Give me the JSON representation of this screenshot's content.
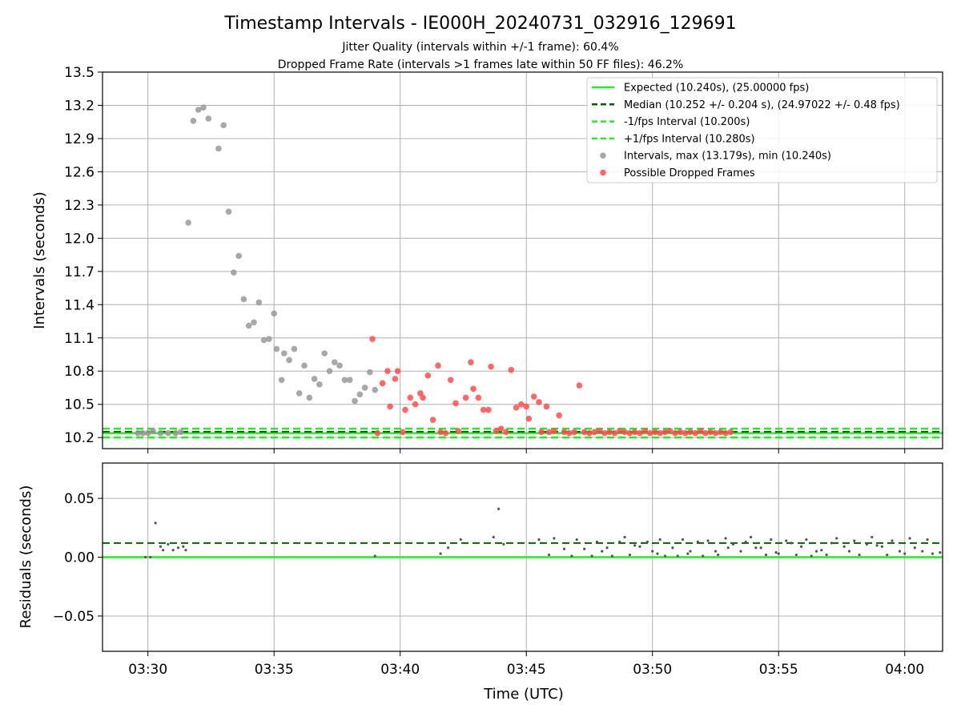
{
  "chart_data": [
    {
      "type": "scatter",
      "title": "Timestamp Intervals - IE000H_20240731_032916_129691",
      "subtitle_lines": [
        "Jitter Quality (intervals within +/-1 frame): 60.4%",
        "Dropped Frame Rate (intervals >1 frames late within 50 FF files): 46.2%"
      ],
      "ylabel": "Intervals (seconds)",
      "ylim": [
        10.1,
        13.5
      ],
      "yticks": [
        "10.2",
        "10.5",
        "10.8",
        "11.1",
        "11.4",
        "11.7",
        "12.0",
        "12.3",
        "12.6",
        "12.9",
        "13.2",
        "13.5"
      ],
      "grid": true,
      "legend_position": "top-right",
      "legend": [
        {
          "label": "Expected (10.240s), (25.00000 fps)",
          "style": "solid",
          "color": "#22ee22"
        },
        {
          "label": "Median (10.252 +/- 0.204 s), (24.97022 +/- 0.48 fps)",
          "style": "dashed",
          "color": "#006400"
        },
        {
          "label": "-1/fps Interval (10.200s)",
          "style": "dashed",
          "color": "#22ee22"
        },
        {
          "label": "+1/fps Interval (10.280s)",
          "style": "dashed",
          "color": "#22ee22"
        },
        {
          "label": "Intervals, max (13.179s), min (10.240s)",
          "style": "marker",
          "color": "#999999"
        },
        {
          "label": "Possible Dropped Frames",
          "style": "marker",
          "color": "#ff4d4d"
        }
      ],
      "hlines": {
        "expected": 10.24,
        "median": 10.252,
        "minus": 10.2,
        "plus": 10.28
      },
      "series": [
        {
          "name": "Intervals, max (13.179s), min (10.240s)",
          "color": "#999999",
          "points": [
            [
              29.6,
              10.24
            ],
            [
              29.8,
              10.24
            ],
            [
              30.0,
              10.24
            ],
            [
              30.2,
              10.26
            ],
            [
              30.5,
              10.24
            ],
            [
              30.8,
              10.24
            ],
            [
              31.1,
              10.24
            ],
            [
              31.3,
              10.25
            ],
            [
              31.6,
              12.14
            ],
            [
              31.8,
              13.06
            ],
            [
              32.0,
              13.16
            ],
            [
              32.2,
              13.18
            ],
            [
              32.4,
              13.08
            ],
            [
              32.8,
              12.81
            ],
            [
              33.0,
              13.02
            ],
            [
              33.2,
              12.24
            ],
            [
              33.4,
              11.69
            ],
            [
              33.6,
              11.84
            ],
            [
              33.8,
              11.45
            ],
            [
              34.0,
              11.21
            ],
            [
              34.2,
              11.24
            ],
            [
              34.4,
              11.42
            ],
            [
              34.6,
              11.08
            ],
            [
              34.8,
              11.09
            ],
            [
              35.0,
              11.32
            ],
            [
              35.1,
              11.0
            ],
            [
              35.3,
              10.72
            ],
            [
              35.4,
              10.96
            ],
            [
              35.6,
              10.9
            ],
            [
              35.8,
              11.0
            ],
            [
              36.0,
              10.6
            ],
            [
              36.2,
              10.85
            ],
            [
              36.4,
              10.56
            ],
            [
              36.6,
              10.73
            ],
            [
              36.8,
              10.68
            ],
            [
              37.0,
              10.96
            ],
            [
              37.2,
              10.8
            ],
            [
              37.4,
              10.88
            ],
            [
              37.6,
              10.85
            ],
            [
              37.8,
              10.72
            ],
            [
              38.0,
              10.72
            ],
            [
              38.2,
              10.53
            ],
            [
              38.4,
              10.59
            ],
            [
              38.6,
              10.65
            ],
            [
              38.8,
              10.79
            ],
            [
              39.0,
              10.63
            ]
          ]
        },
        {
          "name": "Possible Dropped Frames",
          "color": "#ff4d4d",
          "points": [
            [
              38.9,
              11.09
            ],
            [
              39.1,
              10.24
            ],
            [
              39.3,
              10.69
            ],
            [
              39.5,
              10.8
            ],
            [
              39.6,
              10.48
            ],
            [
              39.8,
              10.73
            ],
            [
              39.9,
              10.8
            ],
            [
              40.1,
              10.25
            ],
            [
              40.2,
              10.45
            ],
            [
              40.4,
              10.56
            ],
            [
              40.6,
              10.5
            ],
            [
              40.8,
              10.6
            ],
            [
              40.9,
              10.56
            ],
            [
              41.1,
              10.76
            ],
            [
              41.3,
              10.36
            ],
            [
              41.5,
              10.85
            ],
            [
              41.6,
              10.25
            ],
            [
              41.8,
              10.24
            ],
            [
              42.0,
              10.72
            ],
            [
              42.2,
              10.51
            ],
            [
              42.3,
              10.26
            ],
            [
              42.6,
              10.56
            ],
            [
              42.8,
              10.88
            ],
            [
              42.9,
              10.64
            ],
            [
              43.1,
              10.56
            ],
            [
              43.3,
              10.45
            ],
            [
              43.5,
              10.45
            ],
            [
              43.6,
              10.84
            ],
            [
              43.8,
              10.26
            ],
            [
              44.0,
              10.28
            ],
            [
              44.2,
              10.25
            ],
            [
              44.4,
              10.81
            ],
            [
              44.6,
              10.47
            ],
            [
              44.8,
              10.5
            ],
            [
              45.0,
              10.48
            ],
            [
              45.1,
              10.37
            ],
            [
              45.3,
              10.57
            ],
            [
              45.5,
              10.52
            ],
            [
              45.6,
              10.25
            ],
            [
              45.8,
              10.48
            ],
            [
              45.9,
              10.25
            ],
            [
              46.1,
              10.26
            ],
            [
              46.3,
              10.4
            ],
            [
              46.5,
              10.25
            ],
            [
              46.7,
              10.24
            ],
            [
              46.9,
              10.25
            ],
            [
              47.1,
              10.67
            ],
            [
              47.3,
              10.25
            ],
            [
              47.5,
              10.24
            ],
            [
              47.7,
              10.25
            ],
            [
              47.9,
              10.26
            ],
            [
              48.1,
              10.24
            ],
            [
              48.3,
              10.25
            ],
            [
              48.5,
              10.24
            ],
            [
              48.7,
              10.26
            ],
            [
              48.9,
              10.25
            ],
            [
              49.1,
              10.24
            ],
            [
              49.3,
              10.25
            ],
            [
              49.5,
              10.24
            ],
            [
              49.7,
              10.26
            ],
            [
              49.9,
              10.24
            ],
            [
              50.1,
              10.25
            ],
            [
              50.3,
              10.24
            ],
            [
              50.5,
              10.25
            ],
            [
              50.7,
              10.26
            ],
            [
              50.9,
              10.24
            ],
            [
              51.1,
              10.25
            ],
            [
              51.3,
              10.24
            ],
            [
              51.5,
              10.25
            ],
            [
              51.7,
              10.24
            ],
            [
              51.9,
              10.26
            ],
            [
              52.1,
              10.24
            ],
            [
              52.3,
              10.25
            ],
            [
              52.5,
              10.24
            ],
            [
              52.7,
              10.25
            ],
            [
              52.9,
              10.24
            ],
            [
              53.1,
              10.25
            ]
          ]
        }
      ]
    },
    {
      "type": "scatter",
      "ylabel": "Residuals (seconds)",
      "xlabel": "Time (UTC)",
      "ylim": [
        -0.08,
        0.08
      ],
      "yticks": [
        "0.05",
        "0.00",
        "−0.05"
      ],
      "xlim_minutes": [
        28.2,
        61.5
      ],
      "xticks": [
        "03:30",
        "03:35",
        "03:40",
        "03:45",
        "03:50",
        "03:55",
        "04:00"
      ],
      "grid": true,
      "hlines": {
        "zero": 0.0,
        "median": 0.012
      },
      "points": [
        [
          29.9,
          0.0
        ],
        [
          30.1,
          0.0
        ],
        [
          30.3,
          0.029
        ],
        [
          30.5,
          0.009
        ],
        [
          30.6,
          0.006
        ],
        [
          30.8,
          0.011
        ],
        [
          31.0,
          0.006
        ],
        [
          31.2,
          0.008
        ],
        [
          31.4,
          0.009
        ],
        [
          31.5,
          0.006
        ],
        [
          39.0,
          0.001
        ],
        [
          41.6,
          0.003
        ],
        [
          41.9,
          0.008
        ],
        [
          42.4,
          0.015
        ],
        [
          43.7,
          0.017
        ],
        [
          43.9,
          0.041
        ],
        [
          44.1,
          0.011
        ],
        [
          45.5,
          0.015
        ],
        [
          45.9,
          0.002
        ],
        [
          46.1,
          0.016
        ],
        [
          46.5,
          0.007
        ],
        [
          46.8,
          0.001
        ],
        [
          47.0,
          0.015
        ],
        [
          47.3,
          0.007
        ],
        [
          47.6,
          0.001
        ],
        [
          47.8,
          0.013
        ],
        [
          48.0,
          0.005
        ],
        [
          48.2,
          0.008
        ],
        [
          48.4,
          0.001
        ],
        [
          48.7,
          0.013
        ],
        [
          48.9,
          0.017
        ],
        [
          49.1,
          0.002
        ],
        [
          49.3,
          0.01
        ],
        [
          49.5,
          0.009
        ],
        [
          49.8,
          0.013
        ],
        [
          50.0,
          0.005
        ],
        [
          50.2,
          0.003
        ],
        [
          50.3,
          0.015
        ],
        [
          50.5,
          0.001
        ],
        [
          50.8,
          0.008
        ],
        [
          51.0,
          0.001
        ],
        [
          51.2,
          0.015
        ],
        [
          51.4,
          0.003
        ],
        [
          51.5,
          0.005
        ],
        [
          51.8,
          0.013
        ],
        [
          52.0,
          0.001
        ],
        [
          52.2,
          0.014
        ],
        [
          52.5,
          0.005
        ],
        [
          52.6,
          0.002
        ],
        [
          52.9,
          0.016
        ],
        [
          53.0,
          0.008
        ],
        [
          53.2,
          0.011
        ],
        [
          53.5,
          0.005
        ],
        [
          53.7,
          0.013
        ],
        [
          53.9,
          0.017
        ],
        [
          54.1,
          0.008
        ],
        [
          54.3,
          0.008
        ],
        [
          54.5,
          0.002
        ],
        [
          54.7,
          0.015
        ],
        [
          54.9,
          0.004
        ],
        [
          55.0,
          0.003
        ],
        [
          55.3,
          0.014
        ],
        [
          55.5,
          0.012
        ],
        [
          55.7,
          0.002
        ],
        [
          55.9,
          0.009
        ],
        [
          56.1,
          0.015
        ],
        [
          56.3,
          0.001
        ],
        [
          56.5,
          0.005
        ],
        [
          56.7,
          0.006
        ],
        [
          56.9,
          0.002
        ],
        [
          57.1,
          0.012
        ],
        [
          57.3,
          0.016
        ],
        [
          57.6,
          0.009
        ],
        [
          57.8,
          0.005
        ],
        [
          58.0,
          0.014
        ],
        [
          58.2,
          0.002
        ],
        [
          58.5,
          0.011
        ],
        [
          58.7,
          0.017
        ],
        [
          58.9,
          0.01
        ],
        [
          59.1,
          0.009
        ],
        [
          59.3,
          0.002
        ],
        [
          59.5,
          0.014
        ],
        [
          59.8,
          0.005
        ],
        [
          60.0,
          0.003
        ],
        [
          60.2,
          0.016
        ],
        [
          60.4,
          0.008
        ],
        [
          60.7,
          0.005
        ],
        [
          60.9,
          0.015
        ],
        [
          61.1,
          0.003
        ],
        [
          61.4,
          0.004
        ]
      ]
    }
  ]
}
